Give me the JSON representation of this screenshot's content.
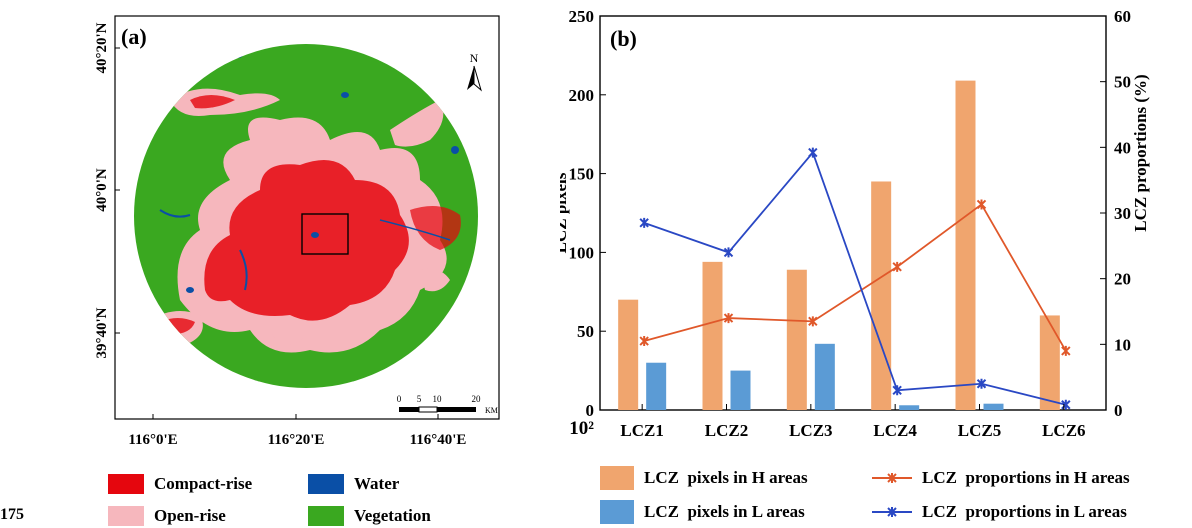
{
  "map": {
    "panel_label": "(a)",
    "lat_labels": [
      "40°20'N",
      "40°0'N",
      "39°40'N"
    ],
    "lon_labels": [
      "116°0'E",
      "116°20'E",
      "116°40'E"
    ],
    "north_label": "N",
    "scale_labels": [
      "0",
      "5",
      "10",
      "20"
    ],
    "scale_unit": "KM",
    "legend": [
      {
        "label": "Compact-rise",
        "color": "#e5060e"
      },
      {
        "label": "Water",
        "color": "#0a4fa6"
      },
      {
        "label": "Open-rise",
        "color": "#f6b7bd"
      },
      {
        "label": "Vegetation",
        "color": "#3aa820"
      }
    ]
  },
  "corner_text": "175",
  "chart_data": {
    "type": "bar",
    "panel_label": "(b)",
    "categories": [
      "LCZ1",
      "LCZ2",
      "LCZ3",
      "LCZ4",
      "LCZ5",
      "LCZ6"
    ],
    "series": [
      {
        "name": "LCZ  pixels in H areas",
        "kind": "bar",
        "axis": "left",
        "color": "#f0a56e",
        "values": [
          70,
          94,
          89,
          145,
          209,
          60
        ]
      },
      {
        "name": "LCZ  pixels in L areas",
        "kind": "bar",
        "axis": "left",
        "color": "#5b9bd5",
        "values": [
          30,
          25,
          42,
          3,
          4,
          0
        ]
      },
      {
        "name": "LCZ  proportions in H areas",
        "kind": "line",
        "axis": "right",
        "color": "#e0582a",
        "values": [
          10.5,
          14,
          13.5,
          21.8,
          31.3,
          9
        ]
      },
      {
        "name": "LCZ  proportions in L areas",
        "kind": "line",
        "axis": "right",
        "color": "#2a48c4",
        "values": [
          28.5,
          24,
          39.2,
          3,
          4,
          0.8
        ]
      }
    ],
    "ylabel": "LCZ pixels",
    "ylabel_right": "LCZ proportions (%)",
    "ylim": [
      0,
      250
    ],
    "ylim_right": [
      0,
      60
    ],
    "yticks": [
      0,
      50,
      100,
      150,
      200,
      250
    ],
    "yticks_right": [
      0,
      10,
      20,
      30,
      40,
      50,
      60
    ],
    "x_corner_label": "10²",
    "grid": false,
    "legend_position": "bottom"
  }
}
